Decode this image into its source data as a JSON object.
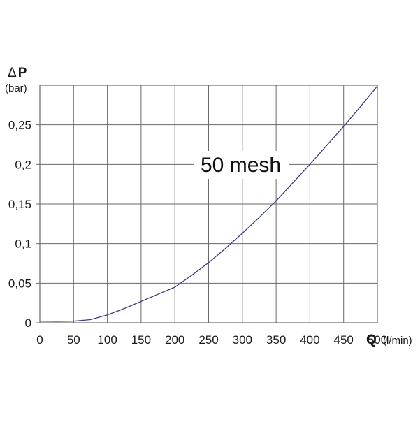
{
  "chart_data": {
    "type": "line",
    "x_axis": {
      "title": "Q",
      "unit": "(l/min)",
      "ticks": [
        "0",
        "50",
        "100",
        "150",
        "200",
        "250",
        "300",
        "350",
        "400",
        "450",
        "500"
      ],
      "range": [
        0,
        500
      ]
    },
    "y_axis": {
      "title": "P",
      "title_prefix": "Δ",
      "unit": "(bar)",
      "ticks": [
        "0",
        "0,05",
        "0,1",
        "0,15",
        "0,2",
        "0,25"
      ],
      "range": [
        0,
        0.3
      ]
    },
    "grid": true,
    "series": [
      {
        "name": "50 mesh",
        "color": "#3b3f7a",
        "points": [
          [
            0,
            0.002
          ],
          [
            25,
            0.0018
          ],
          [
            50,
            0.002
          ],
          [
            75,
            0.004
          ],
          [
            100,
            0.01
          ],
          [
            125,
            0.018
          ],
          [
            150,
            0.027
          ],
          [
            175,
            0.036
          ],
          [
            200,
            0.045
          ],
          [
            225,
            0.06
          ],
          [
            250,
            0.076
          ],
          [
            275,
            0.094
          ],
          [
            300,
            0.113
          ],
          [
            325,
            0.133
          ],
          [
            350,
            0.154
          ],
          [
            375,
            0.177
          ],
          [
            400,
            0.2
          ],
          [
            425,
            0.224
          ],
          [
            450,
            0.248
          ],
          [
            475,
            0.273
          ],
          [
            500,
            0.299
          ]
        ]
      }
    ]
  }
}
